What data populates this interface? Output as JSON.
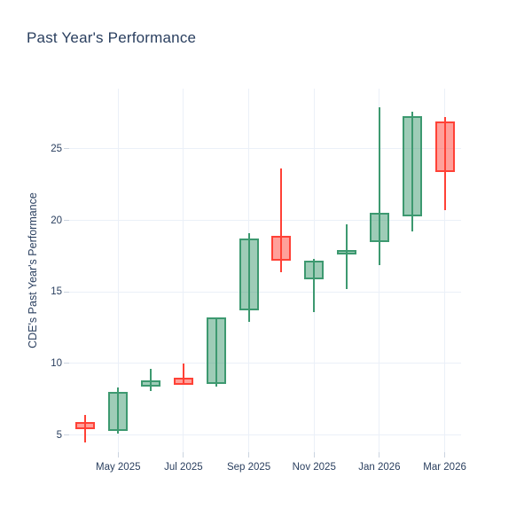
{
  "page": {
    "background": "#ffffff"
  },
  "chart_data": {
    "type": "candlestick",
    "title": "Past Year's Performance",
    "ylabel": "CDE's Past Year's Performance",
    "xlabel": "",
    "grid": true,
    "legend": false,
    "y_ticks": [
      5,
      10,
      15,
      20,
      25
    ],
    "ylim": [
      3.8,
      29.2
    ],
    "x_ticks": [
      {
        "index": 1,
        "label": "May 2025"
      },
      {
        "index": 3,
        "label": "Jul 2025"
      },
      {
        "index": 5,
        "label": "Sep 2025"
      },
      {
        "index": 7,
        "label": "Nov 2025"
      },
      {
        "index": 9,
        "label": "Jan 2026"
      },
      {
        "index": 11,
        "label": "Mar 2026"
      }
    ],
    "candles": [
      {
        "month": "Apr 2025",
        "open": 5.9,
        "high": 6.4,
        "low": 4.5,
        "close": 5.4,
        "direction": "decreasing"
      },
      {
        "month": "May 2025",
        "open": 5.3,
        "high": 8.3,
        "low": 5.1,
        "close": 8.0,
        "direction": "increasing"
      },
      {
        "month": "Jun 2025",
        "open": 8.4,
        "high": 9.6,
        "low": 8.1,
        "close": 8.8,
        "direction": "increasing"
      },
      {
        "month": "Jul 2025",
        "open": 9.0,
        "high": 10.0,
        "low": 8.5,
        "close": 8.5,
        "direction": "decreasing"
      },
      {
        "month": "Aug 2025",
        "open": 8.6,
        "high": 13.2,
        "low": 8.4,
        "close": 13.2,
        "direction": "increasing"
      },
      {
        "month": "Sep 2025",
        "open": 13.7,
        "high": 19.1,
        "low": 12.9,
        "close": 18.7,
        "direction": "increasing"
      },
      {
        "month": "Oct 2025",
        "open": 18.9,
        "high": 23.6,
        "low": 16.4,
        "close": 17.2,
        "direction": "decreasing"
      },
      {
        "month": "Nov 2025",
        "open": 15.9,
        "high": 17.3,
        "low": 13.6,
        "close": 17.2,
        "direction": "increasing"
      },
      {
        "month": "Dec 2025",
        "open": 17.6,
        "high": 19.7,
        "low": 15.2,
        "close": 17.9,
        "direction": "increasing"
      },
      {
        "month": "Jan 2026",
        "open": 18.5,
        "high": 27.9,
        "low": 16.9,
        "close": 20.5,
        "direction": "increasing"
      },
      {
        "month": "Feb 2026",
        "open": 20.3,
        "high": 27.6,
        "low": 19.2,
        "close": 27.3,
        "direction": "increasing"
      },
      {
        "month": "Mar 2026",
        "open": 26.9,
        "high": 27.2,
        "low": 20.7,
        "close": 23.4,
        "direction": "decreasing"
      }
    ],
    "colors": {
      "increasing_line": "#3D9970",
      "increasing_fill": "rgba(61,153,112,0.5)",
      "decreasing_line": "#FF4136",
      "decreasing_fill": "rgba(255,65,54,0.5)",
      "grid": "#EBF0F8",
      "tick_mark": "#CBD4E0",
      "text": "#2a3f5f",
      "background": "#ffffff"
    }
  }
}
